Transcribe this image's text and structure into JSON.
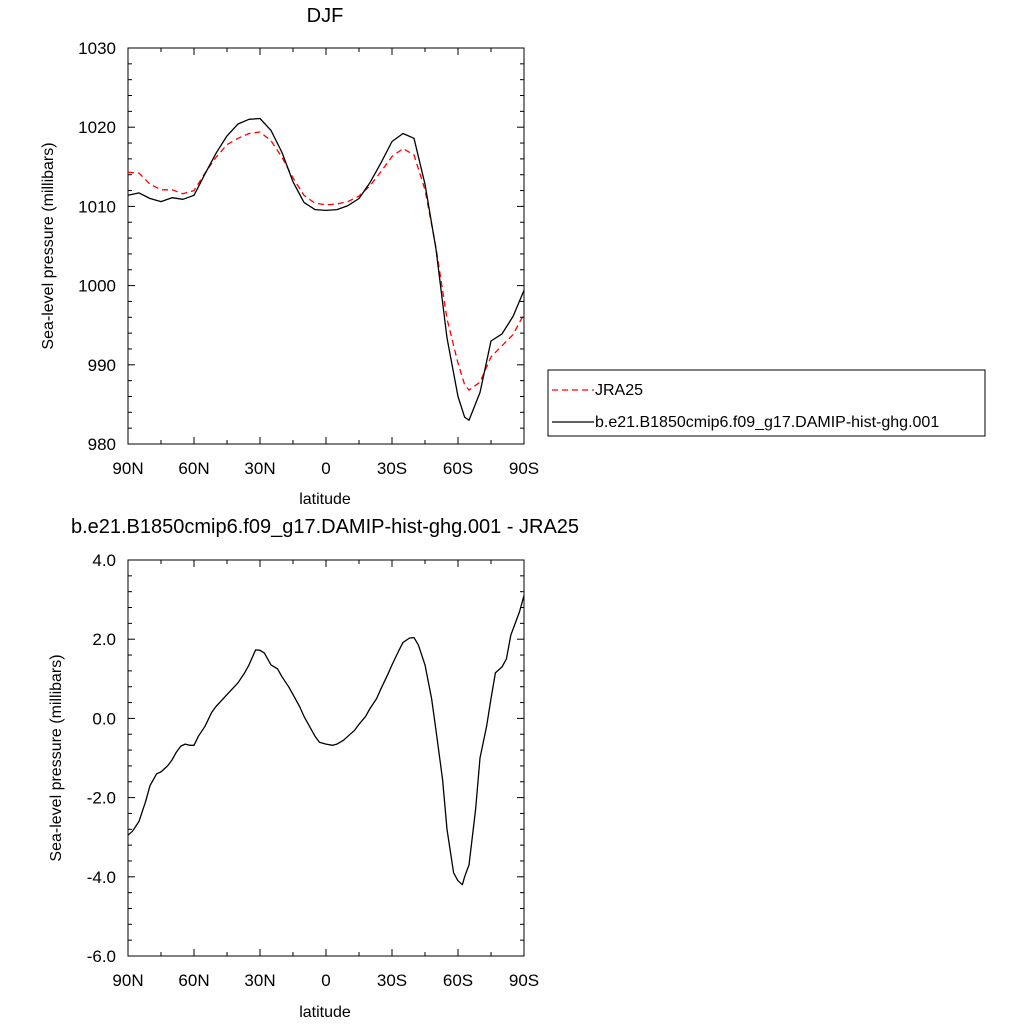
{
  "chart_data": [
    {
      "type": "line",
      "title": "DJF",
      "xlabel": "latitude",
      "ylabel": "Sea-level pressure (millibars)",
      "xlim": [
        90,
        -90
      ],
      "ylim": [
        980,
        1030
      ],
      "x_ticks": [
        90,
        60,
        30,
        0,
        -30,
        -60,
        -90
      ],
      "x_tick_labels": [
        "90N",
        "60N",
        "30N",
        "0",
        "30S",
        "60S",
        "90S"
      ],
      "y_ticks": [
        980,
        990,
        1000,
        1010,
        1020,
        1030
      ],
      "y_tick_labels": [
        "980",
        "990",
        "1000",
        "1010",
        "1020",
        "1030"
      ],
      "grid": false,
      "legend_position": "right",
      "series": [
        {
          "name": "JRA25",
          "color": "#ff0000",
          "style": "dashed",
          "x": [
            90,
            85,
            80,
            75,
            70,
            65,
            60,
            55,
            50,
            45,
            40,
            35,
            30,
            25,
            20,
            15,
            10,
            5,
            0,
            -5,
            -10,
            -15,
            -20,
            -25,
            -30,
            -35,
            -40,
            -45,
            -50,
            -55,
            -60,
            -63,
            -65,
            -70,
            -75,
            -80,
            -85,
            -90
          ],
          "values": [
            1014.3,
            1014.2,
            1012.8,
            1012.1,
            1012.1,
            1011.6,
            1012.0,
            1014.2,
            1016.2,
            1017.8,
            1018.6,
            1019.2,
            1019.4,
            1018.3,
            1016.2,
            1013.6,
            1011.4,
            1010.4,
            1010.2,
            1010.3,
            1010.6,
            1011.3,
            1012.6,
            1014.4,
            1016.3,
            1017.3,
            1016.5,
            1012.1,
            1004.8,
            995.8,
            990.2,
            987.5,
            986.8,
            987.8,
            991.0,
            992.4,
            993.8,
            996.4
          ]
        },
        {
          "name": "b.e21.B1850cmip6.f09_g17.DAMIP-hist-ghg.001",
          "color": "#000000",
          "style": "solid",
          "x": [
            90,
            85,
            80,
            75,
            70,
            65,
            60,
            55,
            50,
            45,
            40,
            35,
            30,
            25,
            20,
            15,
            10,
            5,
            0,
            -5,
            -10,
            -15,
            -20,
            -25,
            -30,
            -35,
            -40,
            -45,
            -50,
            -55,
            -60,
            -63,
            -65,
            -70,
            -75,
            -80,
            -85,
            -90
          ],
          "values": [
            1011.4,
            1011.7,
            1011.0,
            1010.6,
            1011.1,
            1010.9,
            1011.4,
            1014.1,
            1016.7,
            1018.9,
            1020.4,
            1021.0,
            1021.1,
            1019.6,
            1016.8,
            1013.1,
            1010.5,
            1009.6,
            1009.5,
            1009.6,
            1010.1,
            1011.0,
            1013.0,
            1015.5,
            1018.2,
            1019.2,
            1018.6,
            1012.8,
            1004.6,
            993.4,
            986.0,
            983.4,
            983.0,
            986.5,
            993.0,
            993.9,
            996.1,
            999.4
          ]
        }
      ]
    },
    {
      "type": "line",
      "title": "b.e21.B1850cmip6.f09_g17.DAMIP-hist-ghg.001 - JRA25",
      "xlabel": "latitude",
      "ylabel": "Sea-level pressure (millibars)",
      "xlim": [
        90,
        -90
      ],
      "ylim": [
        -6.0,
        4.0
      ],
      "x_ticks": [
        90,
        60,
        30,
        0,
        -30,
        -60,
        -90
      ],
      "x_tick_labels": [
        "90N",
        "60N",
        "30N",
        "0",
        "30S",
        "60S",
        "90S"
      ],
      "y_ticks": [
        -6.0,
        -4.0,
        -2.0,
        0.0,
        2.0,
        4.0
      ],
      "y_tick_labels": [
        "-6.0",
        "-4.0",
        "-2.0",
        "0.0",
        "2.0",
        "4.0"
      ],
      "grid": false,
      "series": [
        {
          "color": "#000000",
          "style": "solid",
          "x": [
            90,
            88,
            85,
            82,
            80,
            77,
            75,
            72,
            70,
            68,
            66,
            64,
            62,
            60,
            58,
            55,
            52,
            50,
            45,
            40,
            37,
            35,
            32,
            30,
            28,
            25,
            22,
            20,
            17,
            15,
            12,
            10,
            7,
            5,
            3,
            0,
            -3,
            -5,
            -8,
            -10,
            -13,
            -15,
            -18,
            -20,
            -23,
            -25,
            -28,
            -30,
            -33,
            -35,
            -38,
            -40,
            -42,
            -45,
            -48,
            -50,
            -53,
            -55,
            -58,
            -60,
            -62,
            -63,
            -65,
            -68,
            -70,
            -73,
            -75,
            -77,
            -80,
            -82,
            -84,
            -86,
            -88,
            -90
          ],
          "values": [
            -2.95,
            -2.85,
            -2.6,
            -2.1,
            -1.7,
            -1.4,
            -1.35,
            -1.2,
            -1.05,
            -0.85,
            -0.7,
            -0.65,
            -0.68,
            -0.68,
            -0.45,
            -0.2,
            0.15,
            0.3,
            0.6,
            0.9,
            1.15,
            1.35,
            1.73,
            1.72,
            1.65,
            1.35,
            1.25,
            1.05,
            0.8,
            0.6,
            0.3,
            0.05,
            -0.25,
            -0.45,
            -0.6,
            -0.65,
            -0.68,
            -0.65,
            -0.55,
            -0.45,
            -0.3,
            -0.15,
            0.05,
            0.25,
            0.5,
            0.75,
            1.1,
            1.35,
            1.7,
            1.92,
            2.03,
            2.04,
            1.85,
            1.35,
            0.5,
            -0.3,
            -1.55,
            -2.8,
            -3.9,
            -4.1,
            -4.2,
            -4.0,
            -3.7,
            -2.3,
            -1.0,
            -0.2,
            0.5,
            1.15,
            1.3,
            1.5,
            2.1,
            2.4,
            2.7,
            3.1
          ]
        }
      ]
    }
  ]
}
